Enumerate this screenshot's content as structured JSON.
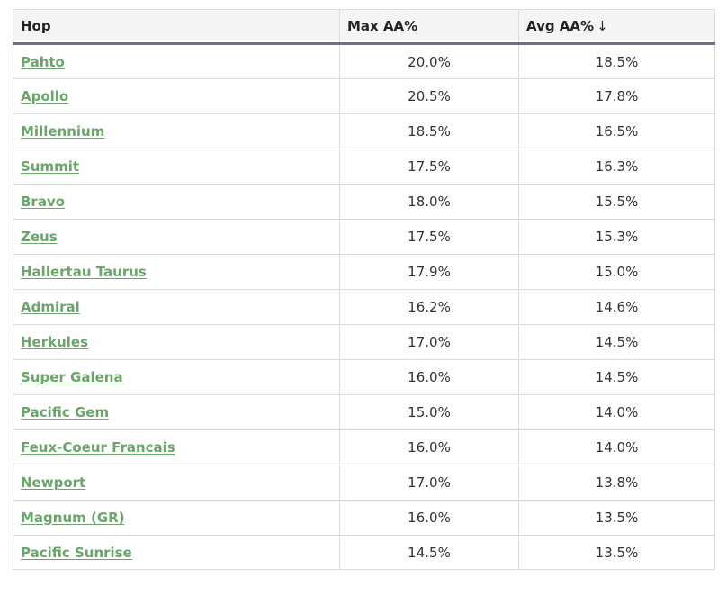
{
  "table": {
    "headers": {
      "hop": "Hop",
      "max": "Max AA%",
      "avg": "Avg AA%",
      "sort_indicator": "↓"
    },
    "rows": [
      {
        "hop": "Pahto",
        "max": "20.0%",
        "avg": "18.5%"
      },
      {
        "hop": "Apollo",
        "max": "20.5%",
        "avg": "17.8%"
      },
      {
        "hop": "Millennium",
        "max": "18.5%",
        "avg": "16.5%"
      },
      {
        "hop": "Summit",
        "max": "17.5%",
        "avg": "16.3%"
      },
      {
        "hop": "Bravo",
        "max": "18.0%",
        "avg": "15.5%"
      },
      {
        "hop": "Zeus",
        "max": "17.5%",
        "avg": "15.3%"
      },
      {
        "hop": "Hallertau Taurus",
        "max": "17.9%",
        "avg": "15.0%"
      },
      {
        "hop": "Admiral",
        "max": "16.2%",
        "avg": "14.6%"
      },
      {
        "hop": "Herkules",
        "max": "17.0%",
        "avg": "14.5%"
      },
      {
        "hop": "Super Galena",
        "max": "16.0%",
        "avg": "14.5%"
      },
      {
        "hop": "Pacific Gem",
        "max": "15.0%",
        "avg": "14.0%"
      },
      {
        "hop": "Feux-Coeur Francais",
        "max": "16.0%",
        "avg": "14.0%"
      },
      {
        "hop": "Newport",
        "max": "17.0%",
        "avg": "13.8%"
      },
      {
        "hop": "Magnum (GR)",
        "max": "16.0%",
        "avg": "13.5%"
      },
      {
        "hop": "Pacific Sunrise",
        "max": "14.5%",
        "avg": "13.5%"
      }
    ]
  },
  "colors": {
    "link": "#6aa66a",
    "header_bg": "#f5f5f5",
    "header_border": "#6b7385"
  }
}
